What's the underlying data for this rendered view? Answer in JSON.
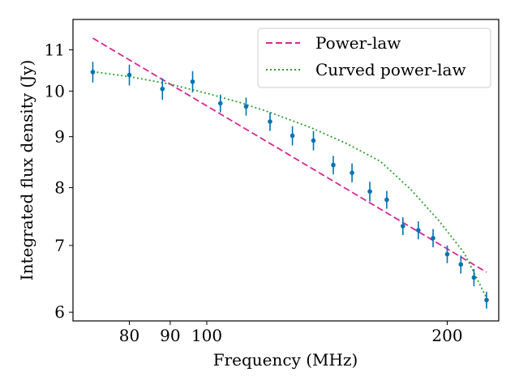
{
  "chart_data": {
    "type": "scatter",
    "xlabel": "Frequency (MHz)",
    "ylabel": "Integrated flux density (Jy)",
    "xscale": "log",
    "yscale": "log",
    "xlim": [
      68,
      232
    ],
    "ylim": [
      5.88,
      11.8
    ],
    "xticks": [
      80,
      90,
      100,
      200
    ],
    "yticks": [
      6,
      7,
      8,
      9,
      10,
      11
    ],
    "legend_position": "top-right",
    "series": [
      {
        "name": "Measurements",
        "style": "points-errorbars",
        "color": "#0072B2",
        "x": [
          72,
          80,
          88,
          96,
          104,
          112,
          120,
          128,
          136,
          144,
          152,
          160,
          168,
          176,
          184,
          192,
          200,
          208,
          216,
          224
        ],
        "y": [
          10.45,
          10.38,
          10.05,
          10.22,
          9.72,
          9.65,
          9.32,
          9.02,
          8.92,
          8.43,
          8.28,
          7.93,
          7.78,
          7.32,
          7.25,
          7.12,
          6.86,
          6.7,
          6.5,
          6.17
        ],
        "yerr": [
          0.25,
          0.25,
          0.25,
          0.25,
          0.2,
          0.2,
          0.2,
          0.2,
          0.2,
          0.18,
          0.18,
          0.18,
          0.16,
          0.15,
          0.15,
          0.15,
          0.14,
          0.14,
          0.13,
          0.12
        ]
      },
      {
        "name": "Power-law",
        "style": "dashed",
        "color": "#D62796",
        "x": [
          72,
          224
        ],
        "y": [
          11.3,
          6.58
        ]
      },
      {
        "name": "Curved power-law",
        "style": "dotted",
        "color": "#2CA02C",
        "x": [
          72,
          80,
          90,
          100,
          110,
          120,
          135,
          150,
          165,
          180,
          195,
          210,
          224
        ],
        "y": [
          10.46,
          10.34,
          10.16,
          9.95,
          9.74,
          9.52,
          9.19,
          8.85,
          8.5,
          7.97,
          7.42,
          6.88,
          6.2
        ]
      }
    ]
  }
}
